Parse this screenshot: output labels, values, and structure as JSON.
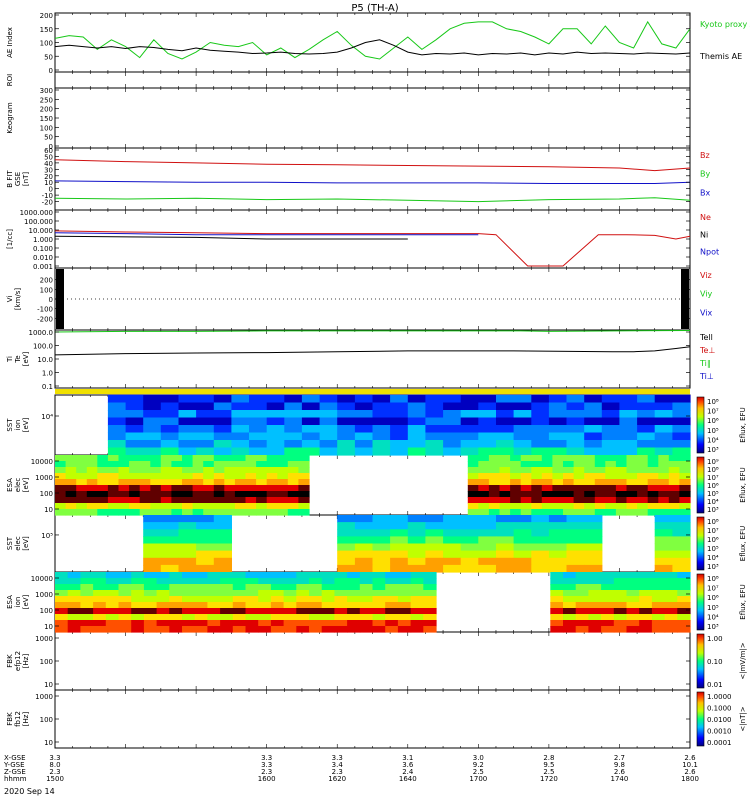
{
  "title": "P5 (TH-A)",
  "date_label": "2020 Sep 14",
  "colors": {
    "red": "#d01010",
    "green": "#18c818",
    "blue": "#1010c8",
    "black": "#000000",
    "yellow": "#f0e000"
  },
  "chart_data": [
    {
      "type": "line",
      "panel": "ae",
      "ylabel": "AE Index",
      "ylim": [
        0,
        200
      ],
      "yticks": [
        "0",
        "50",
        "100",
        "150",
        "200"
      ],
      "series": [
        {
          "name": "Kyoto proxy AE",
          "color": "green",
          "x": [
            1500,
            1504,
            1508,
            1512,
            1516,
            1520,
            1524,
            1528,
            1532,
            1536,
            1540,
            1544,
            1548,
            1552,
            1556,
            1600,
            1604,
            1608,
            1612,
            1616,
            1620,
            1624,
            1628,
            1632,
            1636,
            1640,
            1644,
            1648,
            1652,
            1656,
            1700,
            1704,
            1708,
            1712,
            1716,
            1720,
            1724,
            1728,
            1732,
            1736,
            1740,
            1744,
            1748,
            1752,
            1756,
            1800
          ],
          "y": [
            115,
            125,
            120,
            75,
            110,
            85,
            45,
            110,
            60,
            40,
            65,
            100,
            90,
            85,
            100,
            55,
            80,
            45,
            75,
            110,
            140,
            90,
            50,
            40,
            80,
            120,
            75,
            110,
            150,
            170,
            175,
            175,
            150,
            140,
            120,
            95,
            150,
            150,
            95,
            160,
            100,
            80,
            175,
            95,
            80,
            150
          ]
        },
        {
          "name": "Themis AE",
          "color": "black",
          "x": [
            1500,
            1504,
            1508,
            1512,
            1516,
            1520,
            1524,
            1528,
            1532,
            1536,
            1540,
            1544,
            1548,
            1552,
            1556,
            1600,
            1604,
            1608,
            1612,
            1616,
            1620,
            1624,
            1628,
            1632,
            1636,
            1640,
            1644,
            1648,
            1652,
            1656,
            1700,
            1704,
            1708,
            1712,
            1716,
            1720,
            1724,
            1728,
            1732,
            1736,
            1740,
            1744,
            1748,
            1752,
            1756,
            1800
          ],
          "y": [
            85,
            90,
            85,
            80,
            85,
            78,
            85,
            82,
            75,
            70,
            80,
            72,
            68,
            65,
            60,
            62,
            65,
            60,
            58,
            60,
            65,
            80,
            100,
            110,
            90,
            65,
            55,
            60,
            58,
            62,
            55,
            60,
            58,
            62,
            55,
            62,
            58,
            65,
            60,
            62,
            60,
            58,
            62,
            60,
            58,
            62
          ]
        }
      ]
    },
    {
      "type": "heatmap",
      "panel": "roi",
      "ylabel": "ROI",
      "values": []
    },
    {
      "type": "heatmap",
      "panel": "keogram",
      "ylabel": "Keogram",
      "ylim": [
        0,
        300
      ],
      "yticks": [
        "0",
        "50",
        "100",
        "150",
        "200",
        "250",
        "300"
      ],
      "values": []
    },
    {
      "type": "line",
      "panel": "bfield",
      "ylabel_lines": [
        "B FIT",
        "GSE",
        "[nT]"
      ],
      "ylim": [
        -30,
        60
      ],
      "yticks": [
        "-20",
        "-10",
        "0",
        "10",
        "20",
        "30",
        "40",
        "50",
        "60"
      ],
      "series": [
        {
          "name": "Bz",
          "color": "red",
          "x": [
            1500,
            1520,
            1540,
            1600,
            1620,
            1640,
            1700,
            1720,
            1740,
            1750,
            1800
          ],
          "y": [
            45,
            42,
            40,
            38,
            37,
            36,
            35,
            34,
            32,
            28,
            32
          ]
        },
        {
          "name": "By",
          "color": "green",
          "x": [
            1500,
            1520,
            1540,
            1600,
            1620,
            1640,
            1700,
            1720,
            1740,
            1750,
            1800
          ],
          "y": [
            -15,
            -16,
            -15,
            -17,
            -16,
            -18,
            -20,
            -17,
            -16,
            -14,
            -18
          ]
        },
        {
          "name": "Bx",
          "color": "blue",
          "x": [
            1500,
            1520,
            1540,
            1600,
            1620,
            1640,
            1700,
            1720,
            1740,
            1750,
            1800
          ],
          "y": [
            12,
            11,
            10,
            10,
            9,
            9,
            9,
            8,
            8,
            8,
            10
          ]
        }
      ]
    },
    {
      "type": "line",
      "panel": "density",
      "ylabel_lines": [
        "[1/cc]"
      ],
      "scale": "log",
      "ylim": [
        0.001,
        1000
      ],
      "yticks": [
        "0.001",
        "0.010",
        "0.100",
        "1.000",
        "10.000",
        "100.000",
        "1000.000"
      ],
      "series": [
        {
          "name": "Ne",
          "color": "red",
          "x": [
            1500,
            1520,
            1540,
            1600,
            1620,
            1640,
            1700,
            1705,
            1714,
            1724,
            1734,
            1742,
            1750,
            1756,
            1800
          ],
          "y": [
            8,
            6,
            5,
            4,
            4,
            4,
            4,
            3,
            0.001,
            0.001,
            3,
            3,
            2.5,
            1,
            2
          ]
        },
        {
          "name": "Ni",
          "color": "black",
          "x": [
            1500,
            1540,
            1600,
            1620,
            1640
          ],
          "y": [
            2,
            1.5,
            1,
            1,
            1
          ]
        },
        {
          "name": "Npot",
          "color": "blue",
          "x": [
            1500,
            1520,
            1540,
            1600,
            1620,
            1640,
            1700
          ],
          "y": [
            5,
            4,
            3,
            3,
            3,
            3,
            3
          ]
        }
      ]
    },
    {
      "type": "line",
      "panel": "velocity",
      "ylabel_lines": [
        "Vi",
        "[km/s]"
      ],
      "ylim": [
        -300,
        300
      ],
      "yticks": [
        "-200",
        "-100",
        "0",
        "100",
        "200"
      ],
      "series": [
        {
          "name": "Viz",
          "color": "red",
          "x": [],
          "y": []
        },
        {
          "name": "Viy",
          "color": "green",
          "x": [],
          "y": []
        },
        {
          "name": "Vix",
          "color": "blue",
          "x": [],
          "y": []
        }
      ]
    },
    {
      "type": "line",
      "panel": "temperature",
      "ylabel_lines": [
        "Ti",
        "Te",
        "[eV]"
      ],
      "scale": "log",
      "ylim": [
        0.1,
        1000
      ],
      "yticks": [
        "0.1",
        "1.0",
        "10.0",
        "100.0",
        "1000.0"
      ],
      "series": [
        {
          "name": "Tell",
          "color": "black",
          "x": [
            1500,
            1520,
            1540,
            1600,
            1620,
            1640,
            1700,
            1710,
            1738,
            1744,
            1750,
            1756,
            1800
          ],
          "y": [
            20,
            25,
            28,
            30,
            35,
            40,
            40,
            40,
            35,
            35,
            40,
            60,
            80
          ]
        },
        {
          "name": "Te⊥",
          "color": "red",
          "x": [],
          "y": []
        },
        {
          "name": "Ti∥",
          "color": "green",
          "x": [
            1500,
            1520,
            1540,
            1600,
            1620,
            1640,
            1700,
            1712,
            1720,
            1740,
            1800
          ],
          "y": [
            1000,
            1100,
            1100,
            1200,
            1200,
            1200,
            1200,
            1200,
            1100,
            1200,
            1300
          ]
        },
        {
          "name": "Ti⊥",
          "color": "blue",
          "x": [],
          "y": []
        }
      ]
    },
    {
      "type": "heatmap",
      "panel": "sst_ion",
      "ylabel_lines": [
        "SST",
        "ion",
        "[eV]"
      ],
      "yticks": [
        "10⁴"
      ],
      "cbar_label": "Eflux, EFU",
      "cbar_ticks": [
        "10³",
        "10⁴",
        "10⁵",
        "10⁶",
        "10⁷",
        "10⁸"
      ]
    },
    {
      "type": "heatmap",
      "panel": "esa_elec",
      "ylabel_lines": [
        "ESA",
        "elec",
        "[eV]"
      ],
      "yticks": [
        "10",
        "100",
        "1000",
        "10000"
      ],
      "cbar_label": "Eflux, EFU",
      "cbar_ticks": [
        "10³",
        "10⁴",
        "10⁵",
        "10⁶",
        "10⁷",
        "10⁸",
        "10⁹"
      ]
    },
    {
      "type": "heatmap",
      "panel": "sst_elec",
      "ylabel_lines": [
        "SST",
        "elec",
        "[eV]"
      ],
      "yticks": [
        "10⁵"
      ],
      "cbar_label": "Eflux, EFU",
      "cbar_ticks": [
        "10³",
        "10⁴",
        "10⁵",
        "10⁶",
        "10⁷",
        "10⁸"
      ]
    },
    {
      "type": "heatmap",
      "panel": "esa_ion",
      "ylabel_lines": [
        "ESA",
        "ion",
        "[eV]"
      ],
      "yticks": [
        "10",
        "100",
        "1000",
        "10000"
      ],
      "cbar_label": "Eflux, EFU",
      "cbar_ticks": [
        "10³",
        "10⁴",
        "10⁵",
        "10⁶",
        "10⁷",
        "10⁸"
      ]
    },
    {
      "type": "heatmap",
      "panel": "fbk_e",
      "ylabel_lines": [
        "FBK",
        "efp12",
        "[Hz]"
      ],
      "yticks": [
        "10",
        "100",
        "1000"
      ],
      "cbar_label": "<|mV/m|>",
      "cbar_ticks": [
        "0.01",
        "0.10",
        "1.00"
      ]
    },
    {
      "type": "heatmap",
      "panel": "fbk_b",
      "ylabel_lines": [
        "FBK",
        "fb12",
        "[Hz]"
      ],
      "yticks": [
        "10",
        "100",
        "1000"
      ],
      "cbar_label": "<|nT|>",
      "cbar_ticks": [
        "0.0001",
        "0.0010",
        "0.0100",
        "0.1000",
        "1.0000"
      ]
    }
  ],
  "xaxis": {
    "row_labels": [
      "X-GSE",
      "Y-GSE",
      "Z-GSE",
      "hhmm"
    ],
    "ticks": [
      {
        "time": "1600",
        "vals": [
          "3.3",
          "3.3",
          "2.3"
        ]
      },
      {
        "time": "1620",
        "vals": [
          "3.3",
          "3.4",
          "2.3"
        ]
      },
      {
        "time": "1640",
        "vals": [
          "3.1",
          "3.6",
          "2.4"
        ]
      },
      {
        "time": "1700",
        "vals": [
          "3.0",
          "9.2",
          "2.5"
        ]
      },
      {
        "time": "1720",
        "vals": [
          "2.8",
          "9.5",
          "2.5"
        ]
      },
      {
        "time": "1740",
        "vals": [
          "2.7",
          "9.8",
          "2.6"
        ]
      },
      {
        "time": "1800",
        "vals": [
          "2.6",
          "10.1",
          "2.6"
        ]
      }
    ],
    "start_label": {
      "time": "1500",
      "vals": [
        "3.3",
        "8.0",
        "2.3"
      ]
    }
  },
  "time_range": [
    1500,
    1800
  ]
}
